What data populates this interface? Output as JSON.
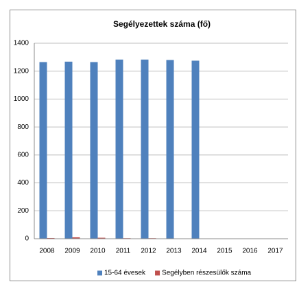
{
  "chart_data": {
    "type": "bar",
    "title": "Segélyezettek száma (fő)",
    "categories": [
      "2008",
      "2009",
      "2010",
      "2011",
      "2012",
      "2013",
      "2014",
      "2015",
      "2016",
      "2017"
    ],
    "series": [
      {
        "name": "15-64 évesek",
        "color": "#4f81bd",
        "values": [
          1265,
          1268,
          1265,
          1283,
          1283,
          1280,
          1275,
          null,
          null,
          null
        ]
      },
      {
        "name": "Segélyben részesülők száma",
        "color": "#c0504d",
        "values": [
          5,
          10,
          7,
          4,
          4,
          null,
          null,
          null,
          null,
          null
        ]
      }
    ],
    "ylim": [
      0,
      1400
    ],
    "yticks": [
      0,
      200,
      400,
      600,
      800,
      1000,
      1200,
      1400
    ],
    "grid": true,
    "legend": "bottom"
  }
}
